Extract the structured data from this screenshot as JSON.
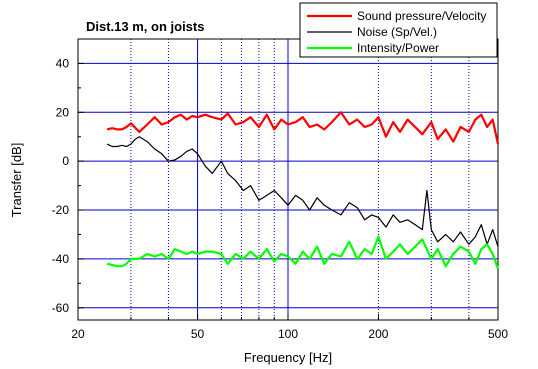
{
  "chart_data": {
    "type": "line",
    "title": "Dist.13 m, on joists",
    "xlabel": "Frequency [Hz]",
    "ylabel": "Transfer [dB]",
    "x_scale": "log",
    "xlim": [
      20,
      500
    ],
    "ylim": [
      -65,
      50
    ],
    "x_ticks": [
      20,
      50,
      100,
      200,
      500
    ],
    "x_tick_labels": [
      "20",
      "50",
      "100",
      "200",
      "500"
    ],
    "y_ticks": [
      -60,
      -40,
      -20,
      0,
      20,
      40
    ],
    "y_tick_labels": [
      "-60",
      "-40",
      "-20",
      "0",
      "20",
      "40"
    ],
    "grid": {
      "major_x": [
        50,
        100
      ],
      "minor_x": [
        30,
        40,
        60,
        70,
        80,
        90,
        200,
        300,
        400
      ],
      "major_y": [
        -60,
        -40,
        -20,
        0,
        20,
        40
      ]
    },
    "legend_position": "top-right",
    "series": [
      {
        "name": "Sound pressure/Velocity",
        "color": "#ff0000",
        "x": [
          25,
          26,
          27,
          28,
          29,
          30,
          32,
          34,
          36,
          38,
          40,
          42,
          44,
          46,
          48,
          50,
          53,
          56,
          60,
          63,
          67,
          71,
          75,
          80,
          85,
          90,
          95,
          100,
          106,
          112,
          118,
          125,
          132,
          140,
          150,
          160,
          170,
          180,
          190,
          200,
          212,
          224,
          236,
          250,
          265,
          280,
          300,
          315,
          335,
          355,
          375,
          400,
          420,
          440,
          460,
          480,
          500
        ],
        "y": [
          13,
          13.5,
          13,
          13,
          14,
          15.5,
          12,
          15,
          18,
          15,
          16,
          18,
          19,
          17,
          18.5,
          18,
          19,
          18,
          17,
          19.5,
          15,
          16,
          18,
          14,
          19,
          13,
          17,
          15,
          16,
          18,
          14,
          15,
          13,
          16,
          20,
          15,
          17,
          14,
          15,
          18,
          10,
          16,
          12,
          17,
          14,
          11,
          16,
          9,
          13,
          8,
          14,
          12,
          17,
          19,
          14,
          17,
          7
        ]
      },
      {
        "name": "Noise (Sp/Vel.)",
        "color": "#000000",
        "x": [
          25,
          26,
          27,
          28,
          29,
          30,
          31,
          32,
          34,
          36,
          38,
          40,
          42,
          44,
          46,
          48,
          50,
          53,
          56,
          60,
          63,
          67,
          71,
          75,
          80,
          85,
          90,
          95,
          100,
          106,
          112,
          118,
          125,
          132,
          140,
          150,
          160,
          170,
          180,
          190,
          200,
          212,
          224,
          236,
          250,
          265,
          280,
          290,
          300,
          315,
          335,
          355,
          375,
          400,
          420,
          440,
          460,
          480,
          500
        ],
        "y": [
          7,
          6,
          6,
          6.5,
          6,
          7,
          9,
          10,
          8,
          5,
          3,
          0,
          0.5,
          2,
          4,
          5,
          3,
          -2,
          -5,
          0,
          -5,
          -8,
          -12,
          -10,
          -16,
          -14,
          -12,
          -15,
          -18,
          -14,
          -16,
          -20,
          -15,
          -18,
          -20,
          -22,
          -17,
          -19,
          -24,
          -22,
          -23,
          -27,
          -22,
          -25,
          -24,
          -26,
          -28,
          -12,
          -28,
          -33,
          -30,
          -33,
          -29,
          -34,
          -31,
          -26,
          -34,
          -28,
          -35
        ]
      },
      {
        "name": "Intensity/Power",
        "color": "#00ff00",
        "x": [
          25,
          26,
          27,
          28,
          29,
          30,
          32,
          34,
          36,
          38,
          40,
          42,
          44,
          46,
          48,
          50,
          53,
          56,
          60,
          63,
          67,
          71,
          75,
          80,
          85,
          90,
          95,
          100,
          106,
          112,
          118,
          125,
          132,
          140,
          150,
          160,
          170,
          180,
          190,
          200,
          212,
          224,
          236,
          250,
          265,
          280,
          300,
          315,
          335,
          355,
          375,
          400,
          420,
          440,
          460,
          480,
          500
        ],
        "y": [
          -42,
          -42.5,
          -43,
          -43,
          -42,
          -40,
          -40,
          -38,
          -39,
          -38,
          -40,
          -36,
          -37,
          -38,
          -37,
          -38,
          -37,
          -37,
          -38,
          -42,
          -38,
          -40,
          -37,
          -40,
          -36,
          -41,
          -38,
          -39,
          -42,
          -37,
          -40,
          -35,
          -42,
          -38,
          -39,
          -33,
          -40,
          -36,
          -38,
          -31,
          -40,
          -37,
          -34,
          -38,
          -35,
          -32,
          -40,
          -36,
          -43,
          -38,
          -35,
          -37,
          -42,
          -36,
          -34,
          -38,
          -44
        ]
      }
    ]
  }
}
